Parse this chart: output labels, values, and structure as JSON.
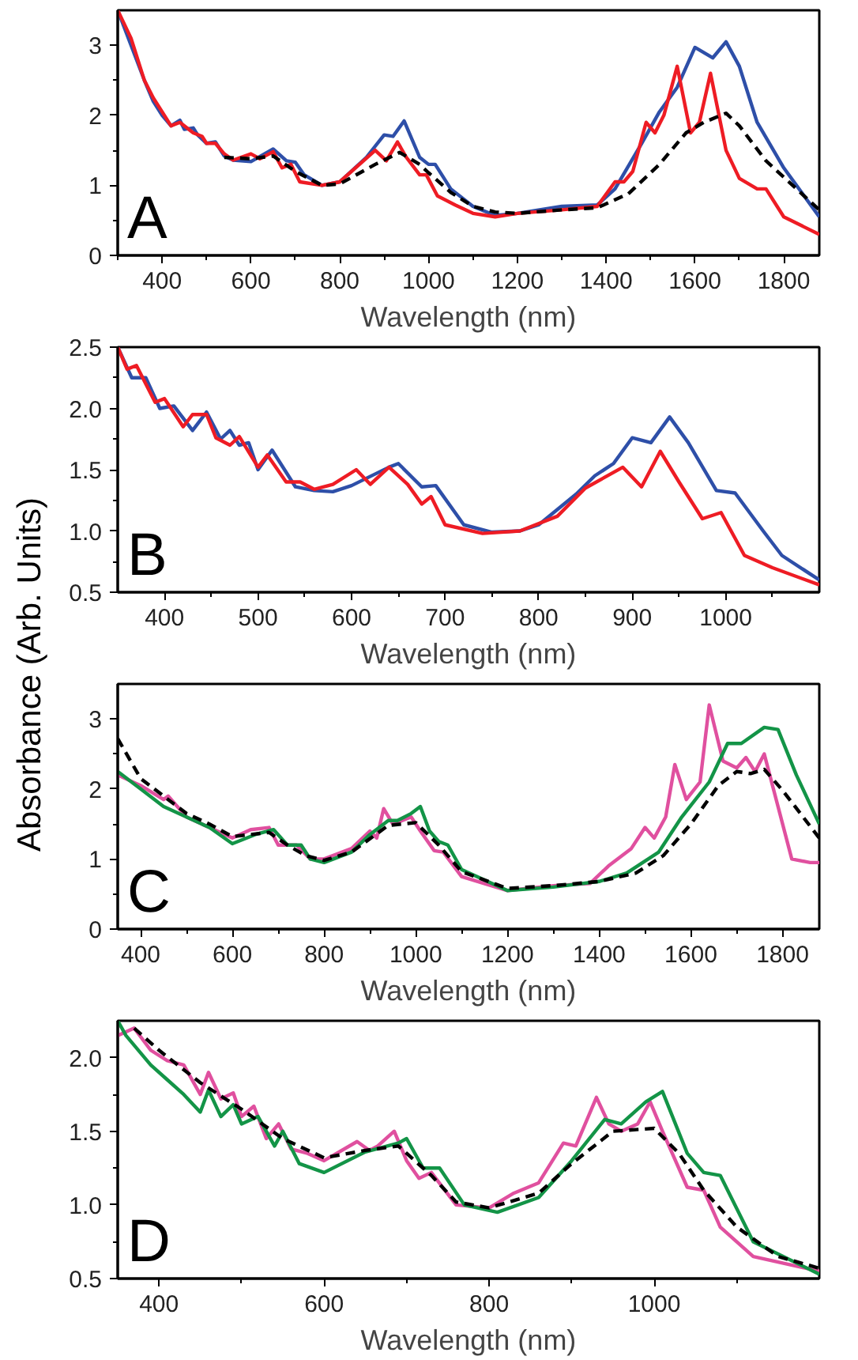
{
  "chart_data": [
    {
      "type": "line",
      "xlabel": "Wavelength (nm)",
      "annotations": [
        "A"
      ],
      "grid": false,
      "xlim": [
        300,
        1880
      ],
      "ylim": [
        0,
        3.5
      ],
      "xticks": [
        {
          "value": 300,
          "label": null
        },
        400,
        {
          "value": 500,
          "label": null
        },
        600,
        {
          "value": 700,
          "label": null
        },
        800,
        {
          "value": 900,
          "label": null
        },
        1000,
        {
          "value": 1100,
          "label": null
        },
        1200,
        {
          "value": 1300,
          "label": null
        },
        1400,
        {
          "value": 1500,
          "label": null
        },
        1600,
        {
          "value": 1700,
          "label": null
        },
        1800
      ],
      "yticks": [
        0,
        {
          "value": 0.5,
          "label": null
        },
        1,
        {
          "value": 1.5,
          "label": null
        },
        2,
        {
          "value": 2.5,
          "label": null
        },
        3
      ],
      "series": [
        {
          "color": "#2e4fa8",
          "line_style": "solid",
          "x": [
            300,
            330,
            360,
            380,
            400,
            420,
            440,
            450,
            470,
            480,
            500,
            520,
            540,
            560,
            600,
            650,
            680,
            700,
            720,
            760,
            800,
            860,
            900,
            920,
            945,
            980,
            1000,
            1015,
            1050,
            1100,
            1150,
            1200,
            1300,
            1380,
            1420,
            1480,
            1520,
            1560,
            1600,
            1640,
            1670,
            1700,
            1740,
            1800,
            1880
          ],
          "values": [
            3.5,
            3.0,
            2.5,
            2.2,
            2.0,
            1.85,
            1.93,
            1.8,
            1.82,
            1.72,
            1.6,
            1.62,
            1.42,
            1.36,
            1.34,
            1.52,
            1.35,
            1.33,
            1.15,
            1.0,
            1.05,
            1.4,
            1.72,
            1.7,
            1.92,
            1.4,
            1.3,
            1.3,
            0.95,
            0.7,
            0.57,
            0.6,
            0.7,
            0.72,
            0.95,
            1.6,
            2.05,
            2.4,
            2.97,
            2.82,
            3.05,
            2.7,
            1.9,
            1.25,
            0.55
          ]
        },
        {
          "color": "#ee1c24",
          "line_style": "solid",
          "x": [
            300,
            330,
            360,
            380,
            400,
            420,
            440,
            470,
            490,
            500,
            520,
            540,
            560,
            600,
            620,
            650,
            670,
            690,
            710,
            760,
            800,
            880,
            905,
            930,
            950,
            980,
            995,
            1020,
            1060,
            1100,
            1150,
            1200,
            1300,
            1380,
            1420,
            1440,
            1460,
            1490,
            1510,
            1530,
            1560,
            1590,
            1610,
            1635,
            1670,
            1700,
            1740,
            1760,
            1800,
            1880
          ],
          "values": [
            3.5,
            3.1,
            2.5,
            2.25,
            2.05,
            1.85,
            1.9,
            1.75,
            1.7,
            1.6,
            1.6,
            1.45,
            1.36,
            1.45,
            1.38,
            1.48,
            1.25,
            1.3,
            1.05,
            1.0,
            1.05,
            1.5,
            1.35,
            1.62,
            1.4,
            1.15,
            1.15,
            0.85,
            0.72,
            0.6,
            0.55,
            0.6,
            0.65,
            0.7,
            1.05,
            1.05,
            1.2,
            1.9,
            1.75,
            2.0,
            2.7,
            1.75,
            1.9,
            2.6,
            1.5,
            1.1,
            0.95,
            0.95,
            0.55,
            0.3
          ]
        },
        {
          "color": "#000000",
          "line_style": "dashed",
          "x": [
            540,
            600,
            650,
            700,
            760,
            800,
            880,
            935,
            980,
            1000,
            1050,
            1100,
            1150,
            1200,
            1300,
            1380,
            1450,
            1520,
            1580,
            1620,
            1670,
            1700,
            1760,
            1880
          ],
          "values": [
            1.4,
            1.38,
            1.42,
            1.2,
            1.0,
            1.02,
            1.3,
            1.47,
            1.3,
            1.18,
            0.9,
            0.7,
            0.62,
            0.6,
            0.65,
            0.68,
            0.88,
            1.3,
            1.75,
            1.9,
            2.03,
            1.85,
            1.35,
            0.65
          ]
        }
      ]
    },
    {
      "type": "line",
      "xlabel": "Wavelength (nm)",
      "annotations": [
        "B"
      ],
      "grid": false,
      "xlim": [
        350,
        1100
      ],
      "ylim": [
        0.5,
        2.5
      ],
      "xticks": [
        400,
        {
          "value": 450,
          "label": null
        },
        500,
        {
          "value": 550,
          "label": null
        },
        600,
        {
          "value": 650,
          "label": null
        },
        700,
        {
          "value": 750,
          "label": null
        },
        800,
        {
          "value": 850,
          "label": null
        },
        900,
        {
          "value": 950,
          "label": null
        },
        1000,
        {
          "value": 1050,
          "label": null
        }
      ],
      "yticks": [
        {
          "value": 0.5,
          "label": "0.5"
        },
        {
          "value": 0.75,
          "label": null
        },
        {
          "value": 1.0,
          "label": "1.0"
        },
        {
          "value": 1.25,
          "label": null
        },
        {
          "value": 1.5,
          "label": "1.5"
        },
        {
          "value": 1.75,
          "label": null
        },
        {
          "value": 2.0,
          "label": "2.0"
        },
        {
          "value": 2.25,
          "label": null
        },
        {
          "value": 2.5,
          "label": "2.5"
        }
      ],
      "series": [
        {
          "color": "#2e4fa8",
          "line_style": "solid",
          "x": [
            350,
            365,
            380,
            395,
            410,
            430,
            445,
            460,
            470,
            480,
            490,
            500,
            515,
            540,
            560,
            580,
            600,
            640,
            650,
            675,
            690,
            720,
            750,
            780,
            800,
            840,
            860,
            880,
            900,
            920,
            940,
            960,
            990,
            1010,
            1040,
            1060,
            1100
          ],
          "values": [
            2.5,
            2.25,
            2.25,
            2.0,
            2.02,
            1.82,
            1.97,
            1.75,
            1.82,
            1.7,
            1.72,
            1.5,
            1.66,
            1.36,
            1.33,
            1.32,
            1.37,
            1.52,
            1.55,
            1.36,
            1.37,
            1.05,
            0.99,
            1.0,
            1.05,
            1.3,
            1.45,
            1.55,
            1.76,
            1.72,
            1.93,
            1.72,
            1.33,
            1.31,
            1.0,
            0.8,
            0.6
          ]
        },
        {
          "color": "#ee1c24",
          "line_style": "solid",
          "x": [
            350,
            360,
            370,
            390,
            400,
            420,
            430,
            445,
            455,
            470,
            480,
            500,
            510,
            530,
            545,
            560,
            580,
            605,
            620,
            640,
            660,
            675,
            685,
            700,
            740,
            780,
            820,
            850,
            890,
            910,
            930,
            950,
            975,
            995,
            1020,
            1050,
            1100
          ],
          "values": [
            2.5,
            2.32,
            2.35,
            2.05,
            2.08,
            1.85,
            1.95,
            1.95,
            1.76,
            1.7,
            1.77,
            1.52,
            1.62,
            1.4,
            1.4,
            1.34,
            1.38,
            1.5,
            1.38,
            1.52,
            1.38,
            1.22,
            1.28,
            1.05,
            0.98,
            1.0,
            1.12,
            1.35,
            1.52,
            1.36,
            1.65,
            1.4,
            1.1,
            1.15,
            0.8,
            0.7,
            0.56
          ]
        }
      ]
    },
    {
      "type": "line",
      "xlabel": "Wavelength (nm)",
      "ylabel": "Absorbance (Arb. Units)",
      "annotations": [
        "C"
      ],
      "grid": false,
      "xlim": [
        350,
        1880
      ],
      "ylim": [
        0,
        3.5
      ],
      "xticks": [
        400,
        {
          "value": 500,
          "label": null
        },
        600,
        {
          "value": 700,
          "label": null
        },
        800,
        {
          "value": 900,
          "label": null
        },
        1000,
        {
          "value": 1100,
          "label": null
        },
        1200,
        {
          "value": 1300,
          "label": null
        },
        1400,
        {
          "value": 1500,
          "label": null
        },
        1600,
        {
          "value": 1700,
          "label": null
        },
        1800
      ],
      "yticks": [
        0,
        {
          "value": 0.5,
          "label": null
        },
        1,
        {
          "value": 1.5,
          "label": null
        },
        2,
        {
          "value": 2.5,
          "label": null
        },
        3
      ],
      "series": [
        {
          "color": "#e0509f",
          "line_style": "solid",
          "x": [
            350,
            400,
            450,
            460,
            500,
            550,
            600,
            640,
            680,
            700,
            740,
            770,
            800,
            860,
            900,
            915,
            930,
            950,
            990,
            1010,
            1040,
            1060,
            1100,
            1200,
            1300,
            1380,
            1420,
            1470,
            1500,
            1520,
            1545,
            1565,
            1590,
            1620,
            1640,
            1670,
            1700,
            1720,
            1740,
            1760,
            1800,
            1820,
            1860,
            1880
          ],
          "values": [
            2.2,
            2.05,
            1.85,
            1.9,
            1.6,
            1.45,
            1.3,
            1.42,
            1.45,
            1.2,
            1.2,
            1.0,
            1.0,
            1.15,
            1.4,
            1.3,
            1.72,
            1.5,
            1.6,
            1.4,
            1.12,
            1.1,
            0.75,
            0.55,
            0.62,
            0.65,
            0.9,
            1.15,
            1.45,
            1.3,
            1.6,
            2.35,
            1.85,
            2.1,
            3.2,
            2.4,
            2.3,
            2.45,
            2.25,
            2.5,
            1.5,
            1.0,
            0.95,
            0.95
          ]
        },
        {
          "color": "#139447",
          "line_style": "solid",
          "x": [
            350,
            400,
            450,
            500,
            550,
            600,
            650,
            690,
            720,
            750,
            770,
            800,
            860,
            900,
            940,
            960,
            990,
            1010,
            1030,
            1050,
            1070,
            1100,
            1200,
            1300,
            1400,
            1460,
            1530,
            1580,
            1640,
            1680,
            1710,
            1760,
            1790,
            1830,
            1880
          ],
          "values": [
            2.25,
            2.0,
            1.75,
            1.6,
            1.45,
            1.22,
            1.35,
            1.42,
            1.2,
            1.2,
            1.0,
            0.95,
            1.1,
            1.35,
            1.55,
            1.55,
            1.65,
            1.75,
            1.4,
            1.25,
            1.2,
            0.85,
            0.55,
            0.6,
            0.68,
            0.8,
            1.1,
            1.6,
            2.1,
            2.65,
            2.65,
            2.88,
            2.85,
            2.2,
            1.5
          ]
        },
        {
          "color": "#000000",
          "line_style": "dashed",
          "x": [
            350,
            400,
            450,
            500,
            550,
            600,
            680,
            720,
            760,
            800,
            860,
            940,
            1000,
            1050,
            1100,
            1200,
            1300,
            1400,
            1480,
            1540,
            1600,
            1660,
            1700,
            1730,
            1760,
            1800,
            1880
          ],
          "values": [
            2.72,
            2.15,
            1.9,
            1.65,
            1.5,
            1.32,
            1.38,
            1.2,
            1.05,
            0.98,
            1.1,
            1.48,
            1.52,
            1.2,
            0.82,
            0.58,
            0.62,
            0.68,
            0.8,
            1.05,
            1.5,
            2.05,
            2.25,
            2.22,
            2.28,
            1.98,
            1.3
          ]
        }
      ]
    },
    {
      "type": "line",
      "xlabel": "Wavelength (nm)",
      "annotations": [
        "D"
      ],
      "grid": false,
      "xlim": [
        350,
        1200
      ],
      "ylim": [
        0.5,
        2.25
      ],
      "xticks": [
        400,
        {
          "value": 500,
          "label": null
        },
        600,
        {
          "value": 700,
          "label": null
        },
        800,
        {
          "value": 900,
          "label": null
        },
        1000,
        {
          "value": 1100,
          "label": null
        }
      ],
      "yticks": [
        {
          "value": 0.5,
          "label": "0.5"
        },
        {
          "value": 0.75,
          "label": null
        },
        {
          "value": 1.0,
          "label": "1.0"
        },
        {
          "value": 1.25,
          "label": null
        },
        {
          "value": 1.5,
          "label": "1.5"
        },
        {
          "value": 1.75,
          "label": null
        },
        {
          "value": 2.0,
          "label": "2.0"
        }
      ],
      "series": [
        {
          "color": "#e0509f",
          "line_style": "solid",
          "x": [
            350,
            370,
            390,
            410,
            430,
            450,
            460,
            475,
            490,
            500,
            515,
            530,
            545,
            560,
            580,
            600,
            640,
            655,
            665,
            685,
            700,
            715,
            730,
            760,
            800,
            830,
            860,
            890,
            905,
            930,
            945,
            960,
            980,
            995,
            1010,
            1040,
            1060,
            1080,
            1120,
            1200
          ],
          "values": [
            2.15,
            2.2,
            2.05,
            1.98,
            1.95,
            1.75,
            1.9,
            1.72,
            1.76,
            1.6,
            1.67,
            1.45,
            1.55,
            1.38,
            1.35,
            1.3,
            1.43,
            1.37,
            1.4,
            1.5,
            1.3,
            1.18,
            1.22,
            1.0,
            0.98,
            1.08,
            1.15,
            1.42,
            1.4,
            1.73,
            1.55,
            1.5,
            1.55,
            1.7,
            1.5,
            1.12,
            1.1,
            0.85,
            0.65,
            0.55
          ]
        },
        {
          "color": "#139447",
          "line_style": "solid",
          "x": [
            350,
            360,
            390,
            410,
            430,
            450,
            460,
            475,
            490,
            500,
            520,
            540,
            550,
            570,
            600,
            650,
            690,
            700,
            720,
            740,
            770,
            810,
            860,
            900,
            940,
            960,
            990,
            1010,
            1040,
            1060,
            1080,
            1120,
            1200
          ],
          "values": [
            2.25,
            2.15,
            1.95,
            1.85,
            1.75,
            1.63,
            1.78,
            1.6,
            1.68,
            1.55,
            1.6,
            1.4,
            1.5,
            1.28,
            1.22,
            1.36,
            1.42,
            1.45,
            1.25,
            1.25,
            1.0,
            0.95,
            1.05,
            1.3,
            1.58,
            1.55,
            1.7,
            1.77,
            1.35,
            1.22,
            1.2,
            0.75,
            0.53
          ]
        },
        {
          "color": "#000000",
          "line_style": "dashed",
          "x": [
            370,
            400,
            450,
            500,
            550,
            600,
            650,
            690,
            730,
            760,
            800,
            860,
            900,
            950,
            1000,
            1030,
            1060,
            1100,
            1150,
            1200
          ],
          "values": [
            2.2,
            2.05,
            1.83,
            1.65,
            1.45,
            1.32,
            1.37,
            1.4,
            1.2,
            1.02,
            0.98,
            1.08,
            1.28,
            1.5,
            1.52,
            1.35,
            1.1,
            0.85,
            0.65,
            0.57
          ]
        }
      ]
    }
  ]
}
